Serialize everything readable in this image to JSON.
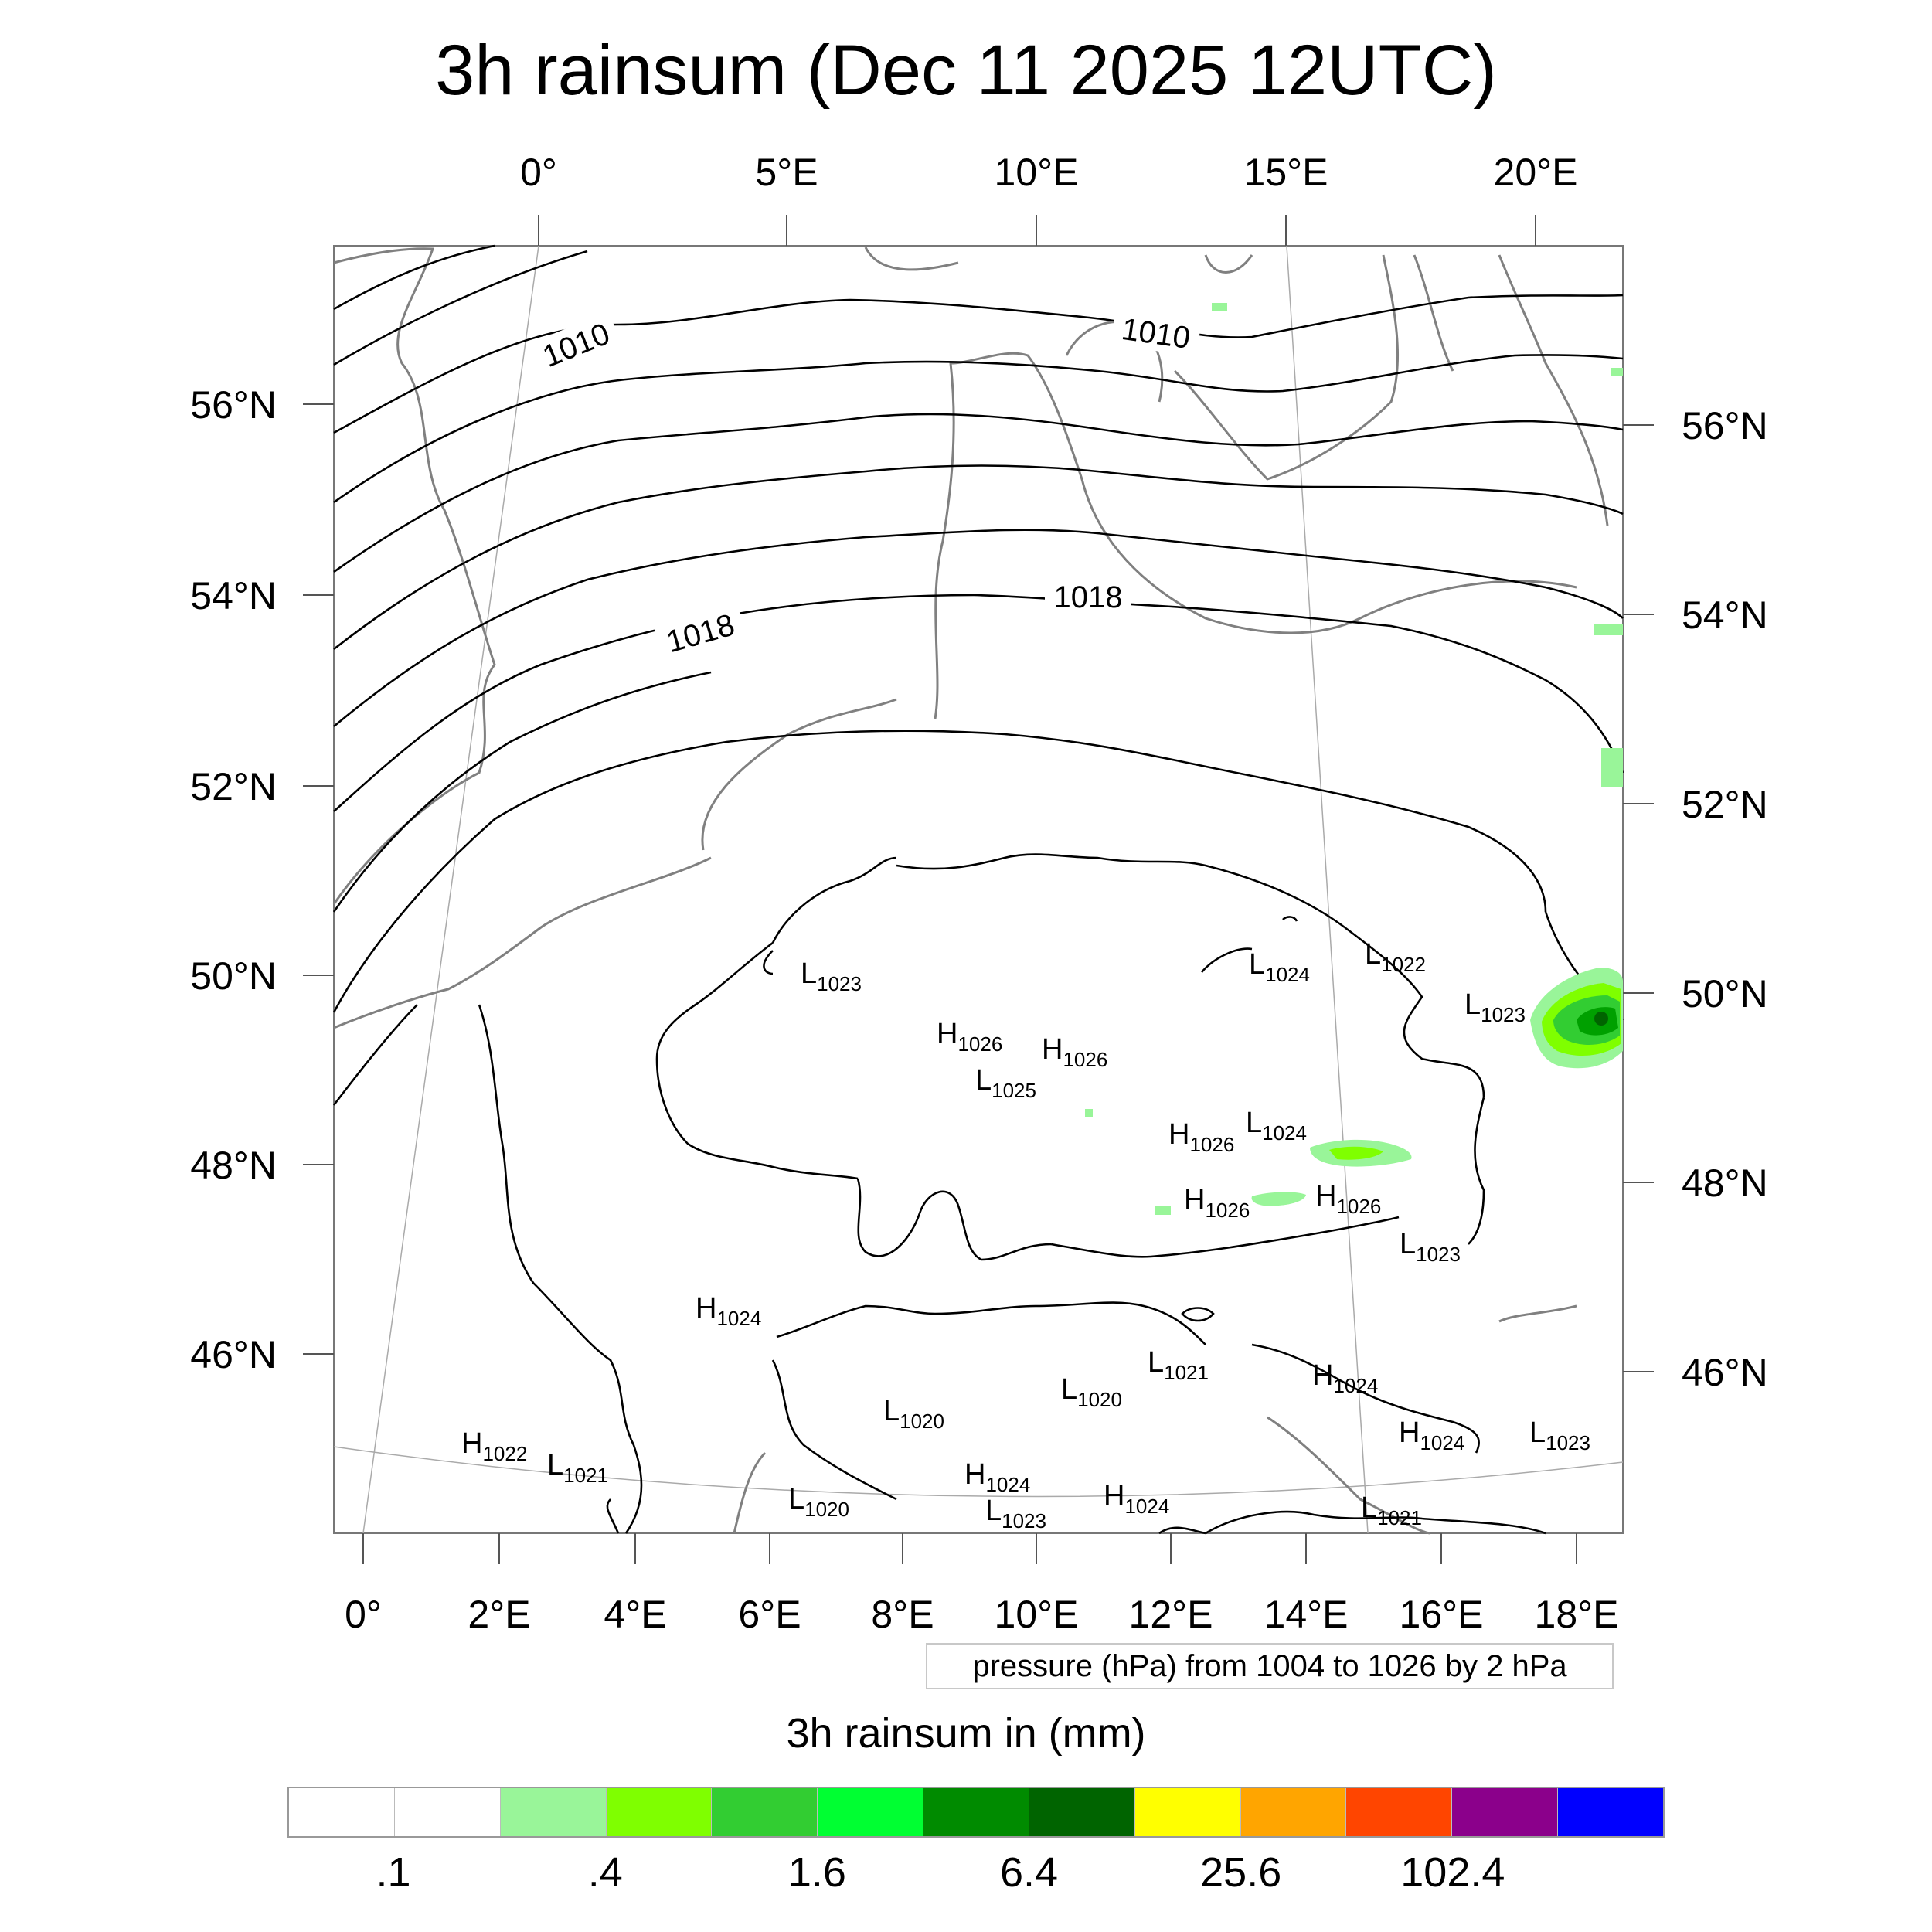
{
  "title": "3h rainsum (Dec 11 2025 12UTC)",
  "top_lon_labels": [
    "0°",
    "5°E",
    "10°E",
    "15°E",
    "20°E"
  ],
  "bottom_lon_labels": [
    "0°",
    "2°E",
    "4°E",
    "6°E",
    "8°E",
    "10°E",
    "12°E",
    "14°E",
    "16°E",
    "18°E"
  ],
  "left_lat_labels": [
    "56°N",
    "54°N",
    "52°N",
    "50°N",
    "48°N",
    "46°N"
  ],
  "right_lat_labels": [
    "56°N",
    "54°N",
    "52°N",
    "50°N",
    "48°N",
    "46°N"
  ],
  "contour_labels": [
    "1010",
    "1010",
    "1018",
    "1018"
  ],
  "pressure_centers": [
    {
      "letter": "L",
      "value": "1023"
    },
    {
      "letter": "H",
      "value": "1026"
    },
    {
      "letter": "H",
      "value": "1026"
    },
    {
      "letter": "L",
      "value": "1025"
    },
    {
      "letter": "L",
      "value": "1024"
    },
    {
      "letter": "L",
      "value": "1022"
    },
    {
      "letter": "L",
      "value": "1023"
    },
    {
      "letter": "H",
      "value": "1026"
    },
    {
      "letter": "L",
      "value": "1024"
    },
    {
      "letter": "H",
      "value": "1026"
    },
    {
      "letter": "H",
      "value": "1026"
    },
    {
      "letter": "L",
      "value": "1023"
    },
    {
      "letter": "H",
      "value": "1024"
    },
    {
      "letter": "L",
      "value": "1021"
    },
    {
      "letter": "L",
      "value": "1020"
    },
    {
      "letter": "L",
      "value": "1020"
    },
    {
      "letter": "H",
      "value": "1024"
    },
    {
      "letter": "H",
      "value": "1024"
    },
    {
      "letter": "L",
      "value": "1023"
    },
    {
      "letter": "H",
      "value": "1022"
    },
    {
      "letter": "L",
      "value": "1021"
    },
    {
      "letter": "L",
      "value": "1020"
    },
    {
      "letter": "H",
      "value": "1024"
    },
    {
      "letter": "L",
      "value": "1023"
    },
    {
      "letter": "H",
      "value": "1024"
    },
    {
      "letter": "L",
      "value": "1021"
    }
  ],
  "pressure_note": "pressure (hPa) from 1004 to 1026 by 2 hPa",
  "legend": {
    "title": "3h rainsum in (mm)",
    "colors": [
      "#ffffff",
      "#ffffff",
      "#99f599",
      "#7fff00",
      "#32cd32",
      "#00ff32",
      "#008b00",
      "#006400",
      "#ffff00",
      "#ffa500",
      "#ff4500",
      "#8b008b",
      "#0000ff"
    ],
    "labels": [
      ".1",
      ".4",
      "1.6",
      "6.4",
      "25.6",
      "102.4"
    ]
  }
}
